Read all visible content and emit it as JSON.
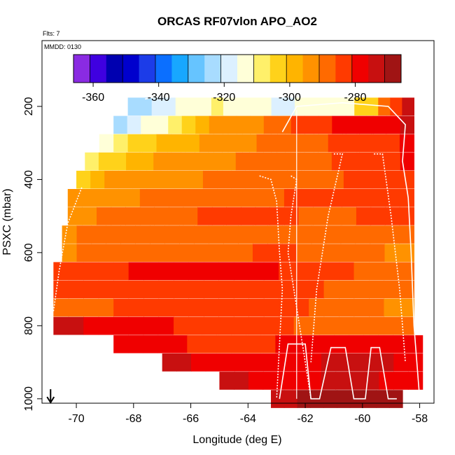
{
  "chart_data": {
    "type": "heatmap",
    "title": "ORCAS RF07vlon APO_AO2",
    "subtitle_flights": "Flts: 7",
    "subtitle_date": "MMDD: 0130",
    "xlabel": "Longitude (deg E)",
    "ylabel": "PSXC (mbar)",
    "xlim": [
      -71.2,
      -57.5
    ],
    "ylim": [
      1012,
      20
    ],
    "x_ticks": [
      -70,
      -68,
      -66,
      -64,
      -62,
      -60,
      -58
    ],
    "y_ticks": [
      200,
      400,
      600,
      800,
      1000
    ],
    "grid": false,
    "colorbar": {
      "range": [
        -366,
        -266
      ],
      "ticks": [
        -360,
        -340,
        -320,
        -300,
        -280
      ],
      "colors": [
        "#8a2be2",
        "#3f00e0",
        "#0000b0",
        "#0000cd",
        "#1c3ce8",
        "#0b6fff",
        "#18a7ff",
        "#66c4ff",
        "#a8dcff",
        "#dcf0ff",
        "#ffffd8",
        "#fff06a",
        "#ffd21a",
        "#ffb400",
        "#ff9200",
        "#ff6a00",
        "#ff3a00",
        "#f00000",
        "#c81010",
        "#a01414"
      ]
    },
    "cells": [
      {
        "pressure": 200,
        "lon_start": -63.2,
        "lon_end": -58.2,
        "values": [
          -320,
          -318,
          -316,
          -314,
          -312,
          -314,
          -316,
          -306,
          -302,
          -290,
          -284,
          -276
        ]
      },
      {
        "pressure": 200,
        "lon_start": -68.2,
        "lon_end": -63.2,
        "values": [
          -326,
          -322,
          -320,
          -318,
          -316,
          -314,
          -312,
          -310,
          -312,
          -314,
          -316,
          -316
        ]
      },
      {
        "pressure": 250,
        "lon_start": -68.7,
        "lon_end": -58.2,
        "values": [
          -322,
          -320,
          -316,
          -312,
          -308,
          -302,
          -299,
          -296,
          -294,
          -292,
          -292,
          -290,
          -288,
          -286,
          -285,
          -282,
          -281,
          -280,
          -280,
          -278,
          -278,
          -276
        ]
      },
      {
        "pressure": 300,
        "lon_start": -69.2,
        "lon_end": -58.2,
        "values": [
          -312,
          -308,
          -304,
          -302,
          -300,
          -298,
          -297,
          -296,
          -294,
          -293,
          -292,
          -291,
          -290,
          -289,
          -288,
          -287,
          -286,
          -285,
          -284,
          -283,
          -282,
          -280
        ]
      },
      {
        "pressure": 350,
        "lon_start": -69.7,
        "lon_end": -58.2,
        "values": [
          -310,
          -306,
          -302,
          -300,
          -298,
          -296,
          -295,
          -294,
          -293,
          -292,
          -292,
          -291,
          -290,
          -290,
          -289,
          -288,
          -288,
          -287,
          -286,
          -285,
          -284,
          -283,
          -282,
          -280
        ]
      },
      {
        "pressure": 400,
        "lon_start": -70.0,
        "lon_end": -58.2,
        "values": [
          -304,
          -298,
          -296,
          -295,
          -294,
          -294,
          -293,
          -292,
          -292,
          -291,
          -291,
          -290,
          -290,
          -289,
          -289,
          -288,
          -288,
          -287,
          -287,
          -286,
          -286,
          -285,
          -284,
          -283
        ]
      },
      {
        "pressure": 450,
        "lon_start": -70.3,
        "lon_end": -58.2,
        "values": [
          -296,
          -294,
          -293,
          -292,
          -292,
          -291,
          -291,
          -290,
          -290,
          -289,
          -289,
          -288,
          -288,
          -287,
          -287,
          -286,
          -286,
          -285,
          -285,
          -284,
          -284,
          -283,
          -282,
          -282
        ]
      },
      {
        "pressure": 500,
        "lon_start": -70.3,
        "lon_end": -58.2,
        "values": [
          -294,
          -292,
          -290,
          -289,
          -288,
          -288,
          -288,
          -287,
          -287,
          -286,
          -286,
          -286,
          -285,
          -285,
          -285,
          -286,
          -287,
          -288,
          -288,
          -287,
          -286,
          -285,
          -284,
          -284
        ]
      },
      {
        "pressure": 550,
        "lon_start": -70.5,
        "lon_end": -58.2,
        "values": [
          -292,
          -291,
          -290,
          -289,
          -289,
          -288,
          -288,
          -288,
          -287,
          -287,
          -287,
          -288,
          -289,
          -290,
          -290,
          -289,
          -289,
          -288,
          -288,
          -288,
          -289,
          -290,
          -290,
          -291
        ]
      },
      {
        "pressure": 600,
        "lon_start": -70.5,
        "lon_end": -58.2,
        "values": [
          -292,
          -291,
          -290,
          -290,
          -289,
          -289,
          -288,
          -288,
          -288,
          -288,
          -288,
          -287,
          -287,
          -286,
          -286,
          -286,
          -287,
          -288,
          -289,
          -290,
          -291,
          -291,
          -292,
          -292
        ]
      },
      {
        "pressure": 650,
        "lon_start": -70.8,
        "lon_end": -58.2,
        "values": [
          -284,
          -283,
          -283,
          -282,
          -282,
          -281,
          -281,
          -280,
          -279,
          -279,
          -278,
          -278,
          -278,
          -279,
          -280,
          -282,
          -283,
          -284,
          -285,
          -286,
          -287,
          -287,
          -288,
          -288
        ]
      },
      {
        "pressure": 700,
        "lon_start": -70.8,
        "lon_end": -58.2,
        "values": [
          -286,
          -286,
          -286,
          -285,
          -285,
          -284,
          -284,
          -284,
          -283,
          -283,
          -283,
          -282,
          -282,
          -282,
          -283,
          -284,
          -285,
          -286,
          -287,
          -288,
          -289,
          -290,
          -290,
          -290
        ]
      },
      {
        "pressure": 750,
        "lon_start": -70.8,
        "lon_end": -58.2,
        "values": [
          -288,
          -288,
          -287,
          -287,
          -286,
          -286,
          -285,
          -285,
          -285,
          -284,
          -284,
          -284,
          -283,
          -283,
          -284,
          -285,
          -286,
          -287,
          -288,
          -289,
          -290,
          -291,
          -292,
          -292
        ]
      },
      {
        "pressure": 800,
        "lon_start": -70.8,
        "lon_end": -58.2,
        "values": [
          -276,
          -276,
          -277,
          -278,
          -278,
          -279,
          -280,
          -281,
          -282,
          -283,
          -284,
          -284,
          -285,
          -285,
          -286,
          -286,
          -287,
          -287,
          -288,
          -289,
          -290,
          -290,
          -291,
          -291
        ]
      },
      {
        "pressure": 850,
        "lon_start": -68.7,
        "lon_end": -57.9,
        "values": [
          -280,
          -279,
          -279,
          -280,
          -281,
          -282,
          -283,
          -283,
          -284,
          -284,
          -282,
          -281,
          -280,
          -280,
          -279,
          -278,
          -278,
          -277,
          -277,
          -277,
          -278
        ]
      },
      {
        "pressure": 900,
        "lon_start": -67.0,
        "lon_end": -57.9,
        "values": [
          -276,
          -276,
          -277,
          -278,
          -279,
          -280,
          -280,
          -279,
          -278,
          -277,
          -277,
          -276,
          -276,
          -276,
          -276,
          -276,
          -277,
          -278
        ]
      },
      {
        "pressure": 950,
        "lon_start": -65.0,
        "lon_end": -57.9,
        "values": [
          -276,
          -276,
          -277,
          -278,
          -279,
          -280,
          -278,
          -276,
          -275,
          -275,
          -276,
          -277,
          -278,
          -278
        ]
      },
      {
        "pressure": 1000,
        "lon_start": -63.2,
        "lon_end": -58.6,
        "values": [
          -272,
          -272,
          -271,
          -271,
          -270,
          -270,
          -270,
          -270,
          -270,
          -270
        ]
      }
    ],
    "arrow_marker_lon": -70.9
  }
}
